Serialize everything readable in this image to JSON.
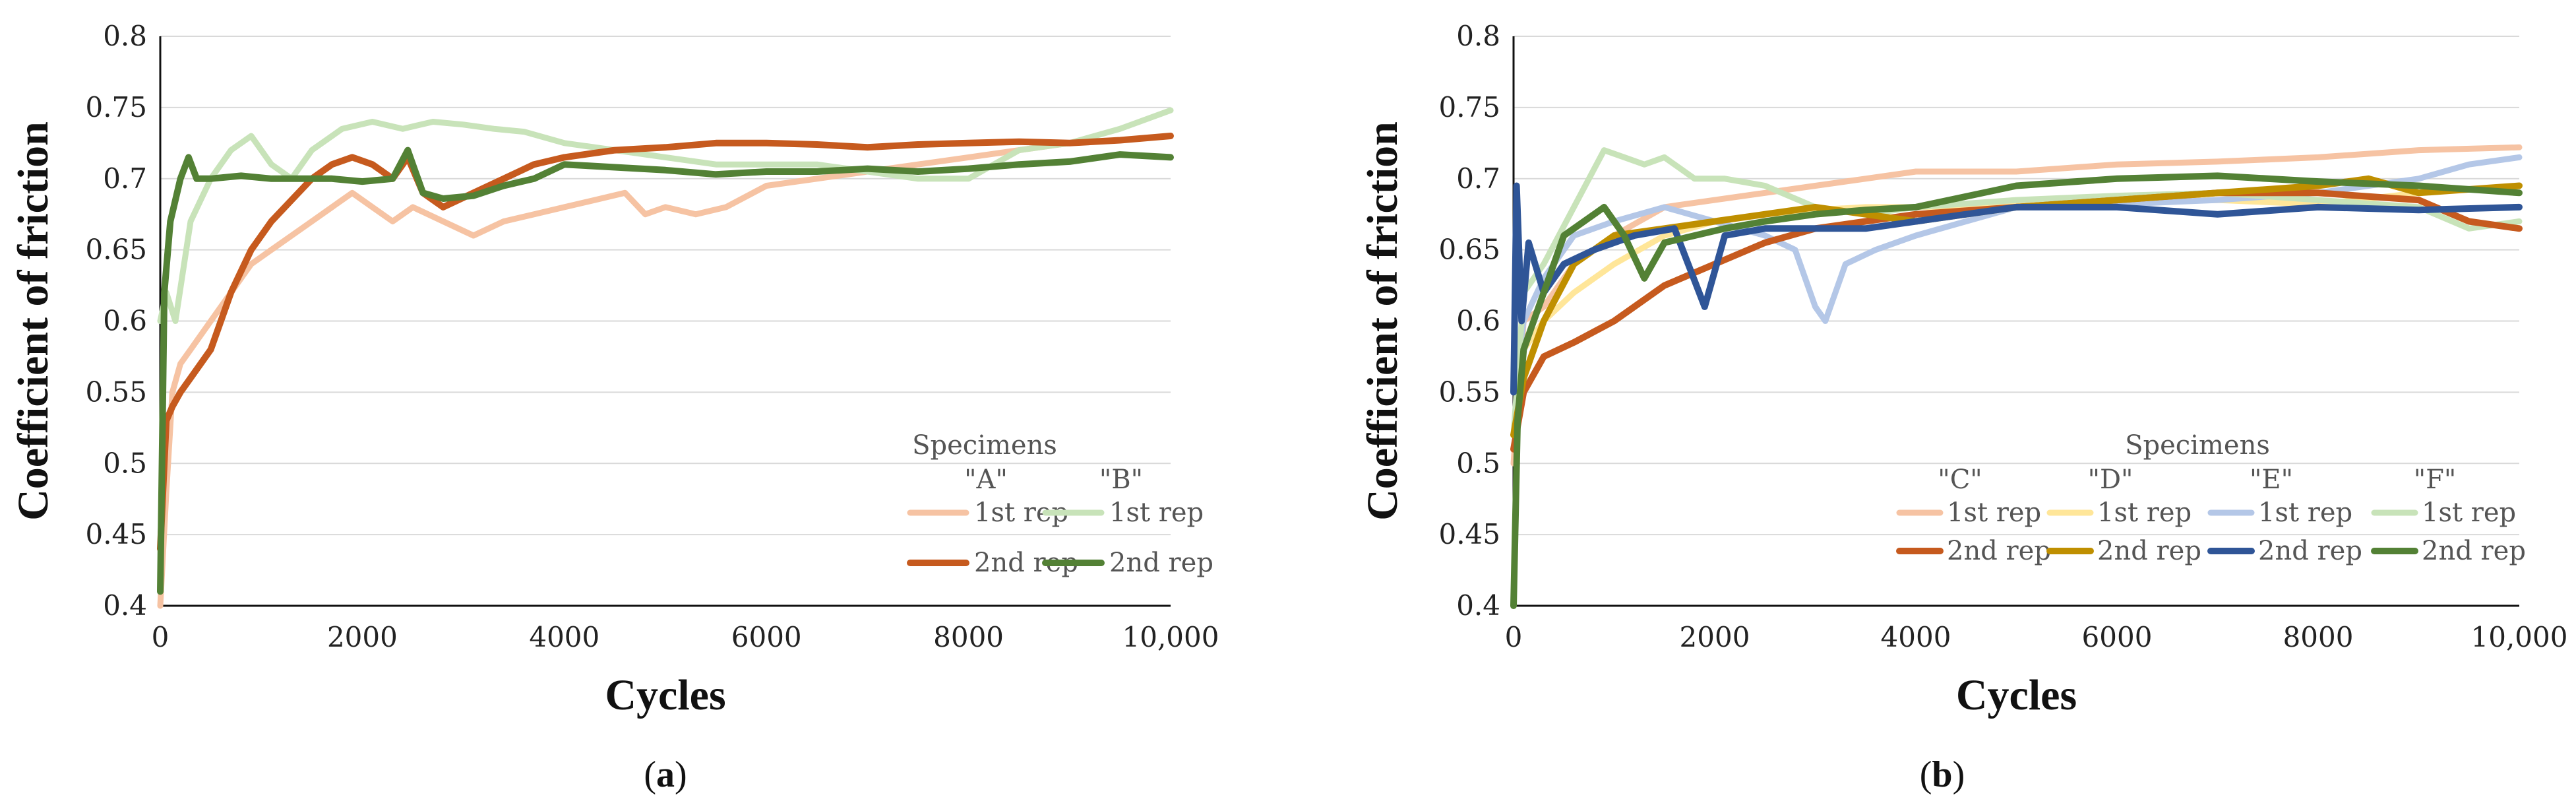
{
  "chart_data": [
    {
      "type": "line",
      "panel": "a",
      "ylabel": "Coefficient of friction",
      "xlabel": "Cycles",
      "ylim": [
        0.4,
        0.8
      ],
      "xlim": [
        0,
        10000
      ],
      "yticks": [
        0.4,
        0.45,
        0.5,
        0.55,
        0.6,
        0.65,
        0.7,
        0.75,
        0.8
      ],
      "ytick_labels": [
        "0.4",
        "0.45",
        "0.5",
        "0.55",
        "0.6",
        "0.65",
        "0.7",
        "0.75",
        "0.8"
      ],
      "xticks": [
        0,
        2000,
        4000,
        6000,
        8000,
        10000
      ],
      "xtick_labels": [
        "0",
        "2000",
        "4000",
        "6000",
        "8000",
        "10,000"
      ],
      "legend_title": "Specimens",
      "legend_groups": [
        "\"A\"",
        "\"B\""
      ],
      "caption_open": "(",
      "caption_letter": "a",
      "caption_close": ")",
      "series": [
        {
          "name": "1st rep",
          "group": "\"A\"",
          "color": "#f6c3a3",
          "width": 9,
          "x": [
            0,
            60,
            120,
            200,
            300,
            500,
            700,
            900,
            1100,
            1300,
            1500,
            1700,
            1900,
            2100,
            2300,
            2500,
            2800,
            3100,
            3400,
            3700,
            4000,
            4300,
            4600,
            4800,
            5000,
            5300,
            5600,
            6000,
            6500,
            7000,
            7500,
            8000,
            8500,
            9000,
            9500,
            10000
          ],
          "values": [
            0.4,
            0.48,
            0.55,
            0.57,
            0.58,
            0.6,
            0.62,
            0.64,
            0.65,
            0.66,
            0.67,
            0.68,
            0.69,
            0.68,
            0.67,
            0.68,
            0.67,
            0.66,
            0.67,
            0.675,
            0.68,
            0.685,
            0.69,
            0.675,
            0.68,
            0.675,
            0.68,
            0.695,
            0.7,
            0.705,
            0.71,
            0.715,
            0.72,
            0.725,
            0.727,
            0.73
          ]
        },
        {
          "name": "1st rep",
          "group": "\"B\"",
          "color": "#c8e3b9",
          "width": 9,
          "x": [
            0,
            60,
            150,
            300,
            500,
            700,
            900,
            1100,
            1300,
            1500,
            1800,
            2100,
            2400,
            2700,
            3000,
            3300,
            3600,
            4000,
            4500,
            5000,
            5500,
            6000,
            6500,
            7000,
            7500,
            8000,
            8500,
            9000,
            9500,
            10000
          ],
          "values": [
            0.6,
            0.62,
            0.6,
            0.67,
            0.7,
            0.72,
            0.73,
            0.71,
            0.7,
            0.72,
            0.735,
            0.74,
            0.735,
            0.74,
            0.738,
            0.735,
            0.733,
            0.725,
            0.72,
            0.715,
            0.71,
            0.71,
            0.71,
            0.705,
            0.7,
            0.7,
            0.72,
            0.725,
            0.735,
            0.748
          ]
        },
        {
          "name": "2nd rep",
          "group": "\"A\"",
          "color": "#c65a1e",
          "width": 10,
          "x": [
            0,
            60,
            120,
            200,
            300,
            500,
            700,
            900,
            1100,
            1300,
            1500,
            1700,
            1900,
            2100,
            2300,
            2450,
            2600,
            2800,
            3100,
            3400,
            3700,
            4000,
            4500,
            5000,
            5500,
            6000,
            6500,
            7000,
            7500,
            8000,
            8500,
            9000,
            9500,
            10000
          ],
          "values": [
            0.44,
            0.53,
            0.54,
            0.55,
            0.56,
            0.58,
            0.62,
            0.65,
            0.67,
            0.685,
            0.7,
            0.71,
            0.715,
            0.71,
            0.7,
            0.715,
            0.69,
            0.68,
            0.69,
            0.7,
            0.71,
            0.715,
            0.72,
            0.722,
            0.725,
            0.725,
            0.724,
            0.722,
            0.724,
            0.725,
            0.726,
            0.725,
            0.727,
            0.73
          ]
        },
        {
          "name": "2nd rep",
          "group": "\"B\"",
          "color": "#538135",
          "width": 10,
          "x": [
            0,
            40,
            100,
            200,
            280,
            360,
            500,
            800,
            1100,
            1400,
            1700,
            2000,
            2300,
            2450,
            2600,
            2800,
            3100,
            3400,
            3700,
            4000,
            4500,
            5000,
            5500,
            6000,
            6500,
            7000,
            7500,
            8000,
            8500,
            9000,
            9500,
            10000
          ],
          "values": [
            0.41,
            0.62,
            0.67,
            0.7,
            0.715,
            0.7,
            0.7,
            0.702,
            0.7,
            0.7,
            0.7,
            0.698,
            0.7,
            0.72,
            0.69,
            0.686,
            0.688,
            0.695,
            0.7,
            0.71,
            0.708,
            0.706,
            0.703,
            0.705,
            0.705,
            0.707,
            0.705,
            0.707,
            0.71,
            0.712,
            0.717,
            0.715
          ]
        }
      ]
    },
    {
      "type": "line",
      "panel": "b",
      "ylabel": "Coefficient of friction",
      "xlabel": "Cycles",
      "ylim": [
        0.4,
        0.8
      ],
      "xlim": [
        0,
        10000
      ],
      "yticks": [
        0.4,
        0.45,
        0.5,
        0.55,
        0.6,
        0.65,
        0.7,
        0.75,
        0.8
      ],
      "ytick_labels": [
        "0.4",
        "0.45",
        "0.5",
        "0.55",
        "0.6",
        "0.65",
        "0.7",
        "0.75",
        "0.8"
      ],
      "xticks": [
        0,
        2000,
        4000,
        6000,
        8000,
        10000
      ],
      "xtick_labels": [
        "0",
        "2000",
        "4000",
        "6000",
        "8000",
        "10,000"
      ],
      "legend_title": "Specimens",
      "legend_groups": [
        "\"C\"",
        "\"D\"",
        "\"E\"",
        "\"F\""
      ],
      "caption_open": "(",
      "caption_letter": "b",
      "caption_close": ")",
      "series": [
        {
          "name": "1st rep",
          "group": "\"C\"",
          "color": "#f6c3a3",
          "width": 9,
          "x": [
            0,
            100,
            300,
            600,
            1000,
            1500,
            2000,
            2500,
            3000,
            3500,
            4000,
            5000,
            6000,
            7000,
            8000,
            9000,
            10000
          ],
          "values": [
            0.5,
            0.6,
            0.61,
            0.64,
            0.66,
            0.68,
            0.685,
            0.69,
            0.695,
            0.7,
            0.705,
            0.705,
            0.71,
            0.712,
            0.715,
            0.72,
            0.722
          ]
        },
        {
          "name": "1st rep",
          "group": "\"D\"",
          "color": "#ffe699",
          "width": 9,
          "x": [
            0,
            100,
            300,
            600,
            1000,
            1500,
            2000,
            2500,
            3000,
            3500,
            4000,
            5000,
            6000,
            7000,
            8000,
            9000,
            10000
          ],
          "values": [
            0.52,
            0.58,
            0.6,
            0.62,
            0.64,
            0.66,
            0.67,
            0.675,
            0.678,
            0.68,
            0.68,
            0.682,
            0.683,
            0.685,
            0.682,
            0.69,
            0.695
          ]
        },
        {
          "name": "1st rep",
          "group": "\"E\"",
          "color": "#b4c7e7",
          "width": 9,
          "x": [
            0,
            100,
            300,
            600,
            1000,
            1500,
            2000,
            2500,
            2800,
            3000,
            3100,
            3300,
            3600,
            4000,
            5000,
            6000,
            7000,
            8000,
            9000,
            9500,
            10000
          ],
          "values": [
            0.55,
            0.6,
            0.63,
            0.66,
            0.67,
            0.68,
            0.67,
            0.66,
            0.65,
            0.61,
            0.6,
            0.64,
            0.65,
            0.66,
            0.68,
            0.682,
            0.685,
            0.69,
            0.7,
            0.71,
            0.715
          ]
        },
        {
          "name": "1st rep",
          "group": "\"F\"",
          "color": "#c8e3b9",
          "width": 9,
          "x": [
            0,
            100,
            300,
            600,
            900,
            1100,
            1300,
            1500,
            1800,
            2100,
            2500,
            3000,
            3500,
            4000,
            5000,
            6000,
            7000,
            8000,
            9000,
            9500,
            10000
          ],
          "values": [
            0.52,
            0.62,
            0.64,
            0.68,
            0.72,
            0.715,
            0.71,
            0.715,
            0.7,
            0.7,
            0.695,
            0.68,
            0.675,
            0.68,
            0.685,
            0.688,
            0.69,
            0.685,
            0.68,
            0.665,
            0.67
          ]
        },
        {
          "name": "2nd rep",
          "group": "\"C\"",
          "color": "#c65a1e",
          "width": 10,
          "x": [
            0,
            100,
            300,
            600,
            1000,
            1500,
            2000,
            2500,
            3000,
            3500,
            4000,
            5000,
            6000,
            7000,
            8000,
            9000,
            9500,
            10000
          ],
          "values": [
            0.51,
            0.55,
            0.575,
            0.585,
            0.6,
            0.625,
            0.64,
            0.655,
            0.665,
            0.67,
            0.675,
            0.68,
            0.685,
            0.69,
            0.69,
            0.685,
            0.67,
            0.665
          ]
        },
        {
          "name": "2nd rep",
          "group": "\"D\"",
          "color": "#bf8f00",
          "width": 10,
          "x": [
            0,
            100,
            300,
            600,
            1000,
            1500,
            2000,
            2500,
            3000,
            3500,
            4000,
            5000,
            6000,
            7000,
            8000,
            8500,
            9000,
            10000
          ],
          "values": [
            0.52,
            0.56,
            0.6,
            0.64,
            0.66,
            0.665,
            0.67,
            0.675,
            0.68,
            0.675,
            0.67,
            0.68,
            0.685,
            0.69,
            0.695,
            0.7,
            0.69,
            0.695
          ]
        },
        {
          "name": "2nd rep",
          "group": "\"E\"",
          "color": "#2f5597",
          "width": 10,
          "x": [
            0,
            30,
            80,
            150,
            300,
            500,
            800,
            1200,
            1600,
            1900,
            2100,
            2500,
            3000,
            3500,
            4000,
            5000,
            6000,
            7000,
            8000,
            9000,
            10000
          ],
          "values": [
            0.55,
            0.695,
            0.6,
            0.655,
            0.62,
            0.64,
            0.65,
            0.66,
            0.665,
            0.61,
            0.66,
            0.665,
            0.665,
            0.665,
            0.67,
            0.68,
            0.68,
            0.675,
            0.68,
            0.678,
            0.68
          ]
        },
        {
          "name": "2nd rep",
          "group": "\"F\"",
          "color": "#538135",
          "width": 10,
          "x": [
            0,
            40,
            100,
            200,
            300,
            500,
            700,
            900,
            1100,
            1300,
            1500,
            1800,
            2100,
            2500,
            3000,
            3500,
            4000,
            5000,
            6000,
            7000,
            8000,
            9000,
            10000
          ],
          "values": [
            0.4,
            0.53,
            0.58,
            0.6,
            0.62,
            0.66,
            0.67,
            0.68,
            0.66,
            0.63,
            0.655,
            0.66,
            0.665,
            0.67,
            0.675,
            0.678,
            0.68,
            0.695,
            0.7,
            0.702,
            0.698,
            0.695,
            0.69
          ]
        }
      ]
    }
  ]
}
